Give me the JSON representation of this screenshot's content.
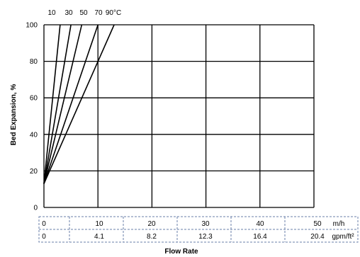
{
  "chart_data": {
    "type": "line",
    "ylabel": "Bed Expansion, %",
    "xlabel": "Flow Rate",
    "ylim": [
      0,
      100
    ],
    "xlim": [
      0,
      50
    ],
    "y_ticks": [
      "0",
      "20",
      "40",
      "60",
      "80",
      "100"
    ],
    "x_ticks_metric": [
      "0",
      "10",
      "20",
      "30",
      "40",
      "50"
    ],
    "x_unit_metric": "m/h",
    "x_ticks_imperial": [
      "0",
      "4.1",
      "8.2",
      "12.3",
      "16.4",
      "20.4"
    ],
    "x_unit_imperial": "gpm/ft²",
    "grid": true,
    "series_label_suffix": "°C",
    "series": [
      {
        "name": "10",
        "points": [
          [
            0,
            13
          ],
          [
            3,
            100
          ]
        ]
      },
      {
        "name": "30",
        "points": [
          [
            0,
            13
          ],
          [
            5,
            100
          ]
        ]
      },
      {
        "name": "50",
        "points": [
          [
            0,
            13
          ],
          [
            7,
            100
          ]
        ]
      },
      {
        "name": "70",
        "points": [
          [
            0,
            13
          ],
          [
            10,
            100
          ]
        ]
      },
      {
        "name": "90",
        "points": [
          [
            0,
            13
          ],
          [
            13,
            100
          ]
        ]
      }
    ]
  }
}
